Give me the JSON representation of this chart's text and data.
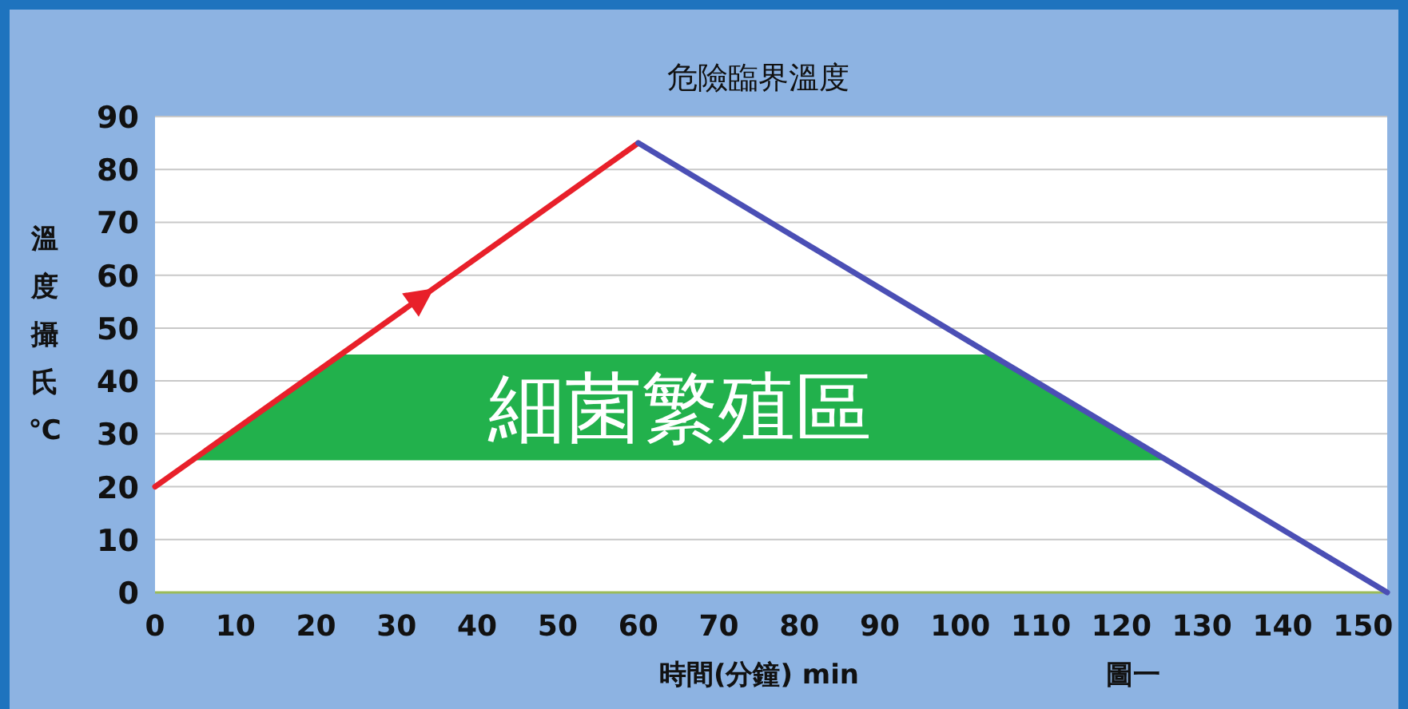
{
  "chart_data": {
    "type": "line",
    "title": "危險臨界溫度",
    "xlabel": "時間(分鐘) min",
    "ylabel": "溫度攝氏℃",
    "annotations": [
      "圖一"
    ],
    "series": [
      {
        "color": "#e8202a",
        "x": [
          0,
          60
        ],
        "values": [
          20,
          85
        ]
      },
      {
        "color": "#4b4fb5",
        "x": [
          60,
          153
        ],
        "values": [
          85,
          0
        ]
      }
    ],
    "xlim": [
      0,
      153
    ],
    "ylim": [
      0,
      90
    ],
    "xticks": [
      0,
      10,
      20,
      30,
      40,
      50,
      60,
      70,
      80,
      90,
      100,
      110,
      120,
      130,
      140,
      150
    ],
    "yticks": [
      0,
      10,
      20,
      30,
      40,
      50,
      60,
      70,
      80,
      90
    ],
    "grid": "y",
    "marker": "none",
    "line_style": "solid",
    "bands": [
      {
        "axis": "y",
        "from": 25,
        "to": 45,
        "label": "細菌繁殖區",
        "color": "#22b14c"
      }
    ]
  }
}
